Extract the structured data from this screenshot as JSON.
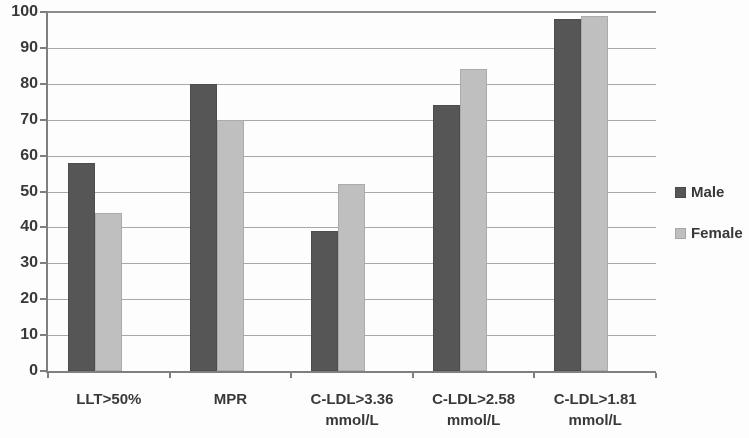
{
  "chart_data": {
    "type": "bar",
    "categories": [
      "LLT>50%",
      "MPR",
      "C-LDL>3.36\nmmol/L",
      "C-LDL>2.58\nmmol/L",
      "C-LDL>1.81\nmmol/L"
    ],
    "series": [
      {
        "name": "Male",
        "color": "#565656",
        "values": [
          58,
          80,
          39,
          74,
          98
        ]
      },
      {
        "name": "Female",
        "color": "#bfbfbf",
        "values": [
          44,
          70,
          52,
          84,
          99
        ]
      }
    ],
    "title": "",
    "xlabel": "",
    "ylabel": "",
    "ylim": [
      0,
      100
    ],
    "yticks": [
      0,
      10,
      20,
      30,
      40,
      50,
      60,
      70,
      80,
      90,
      100
    ],
    "grid": true,
    "legend_position": "right",
    "legend_labels": [
      "Male",
      "Female"
    ]
  }
}
